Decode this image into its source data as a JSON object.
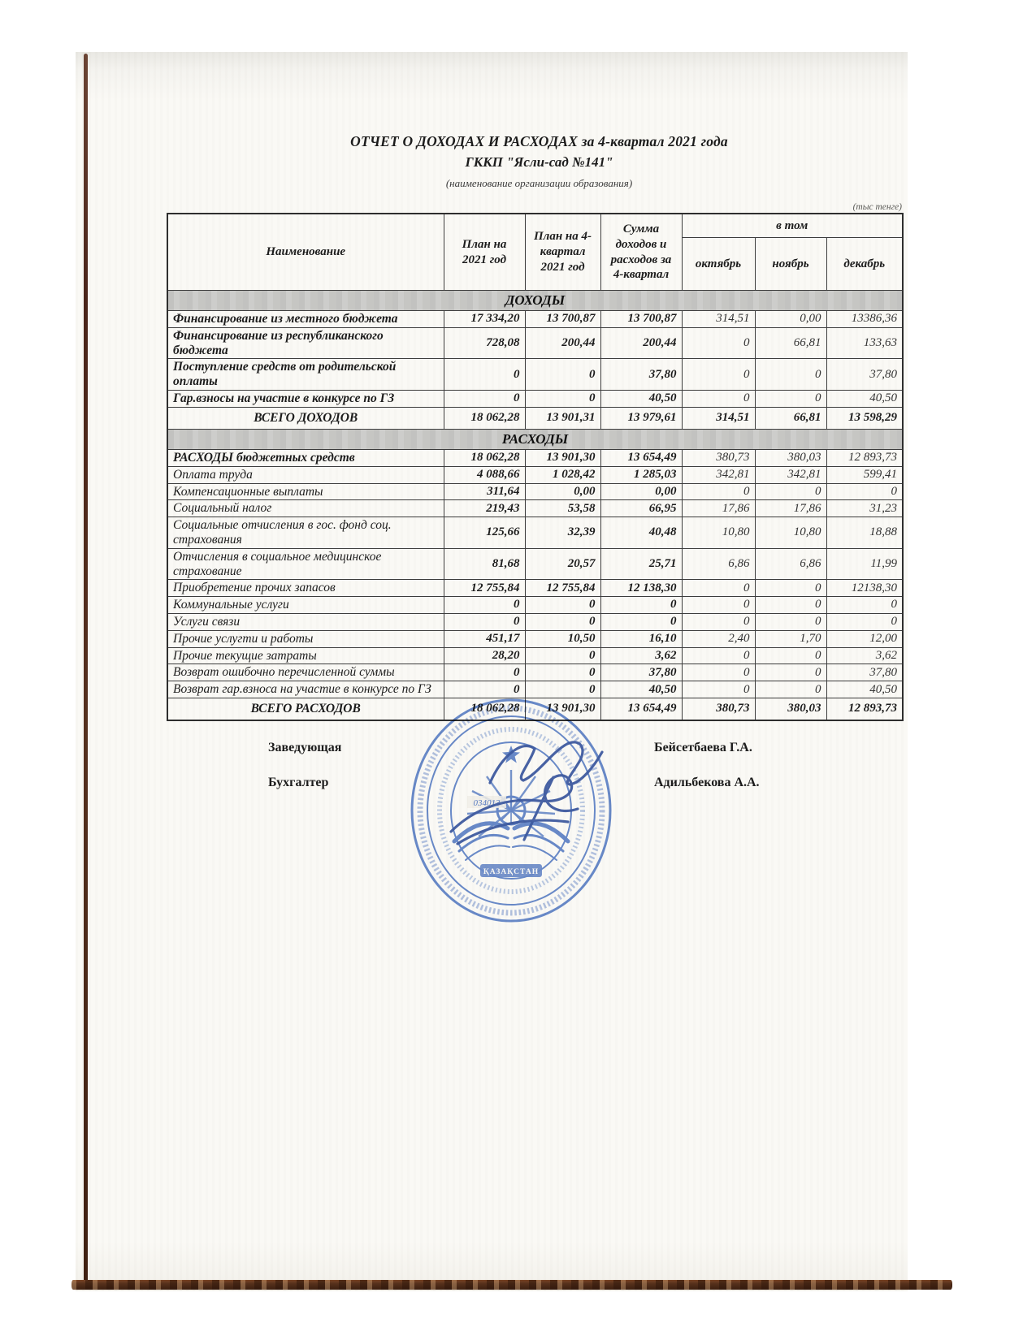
{
  "page": {
    "title_line1": "ОТЧЕТ О ДОХОДАХ И РАСХОДАХ за 4-квартал 2021 года",
    "title_line2": "ГККП \"Ясли-сад №141\"",
    "subtitle": "(наименование организации образования)",
    "units_note": "(тыс тенге)"
  },
  "table": {
    "headers": {
      "name": "Наименование",
      "plan_year": "План на 2021 год",
      "plan_q4": "План на 4-квартал 2021 год",
      "sum_q4": "Сумма доходов и расходов за 4-квартал",
      "including": "в том",
      "months": [
        "октябрь",
        "ноябрь",
        "декабрь"
      ]
    },
    "sections": [
      {
        "title": "ДОХОДЫ",
        "rows": [
          {
            "name": "Финансирование из местного бюджета",
            "bold": true,
            "values": [
              "17 334,20",
              "13 700,87",
              "13 700,87",
              "314,51",
              "0,00",
              "13386,36"
            ]
          },
          {
            "name": "Финансирование из республиканского бюджета",
            "bold": true,
            "values": [
              "728,08",
              "200,44",
              "200,44",
              "0",
              "66,81",
              "133,63"
            ]
          },
          {
            "name": "Поступление средств от родительской оплаты",
            "bold": true,
            "values": [
              "0",
              "0",
              "37,80",
              "0",
              "0",
              "37,80"
            ]
          },
          {
            "name": "Гар.взносы на участие в конкурсе по ГЗ",
            "bold": true,
            "values": [
              "0",
              "0",
              "40,50",
              "0",
              "0",
              "40,50"
            ]
          }
        ],
        "total": {
          "name": "ВСЕГО ДОХОДОВ",
          "values": [
            "18 062,28",
            "13 901,31",
            "13 979,61",
            "314,51",
            "66,81",
            "13 598,29"
          ]
        }
      },
      {
        "title": "РАСХОДЫ",
        "rows": [
          {
            "name": "РАСХОДЫ бюджетных средств",
            "bold": true,
            "values": [
              "18 062,28",
              "13 901,30",
              "13 654,49",
              "380,73",
              "380,03",
              "12 893,73"
            ]
          },
          {
            "name": "Оплата труда",
            "bold": false,
            "values": [
              "4 088,66",
              "1 028,42",
              "1 285,03",
              "342,81",
              "342,81",
              "599,41"
            ]
          },
          {
            "name": "Компенсационные выплаты",
            "bold": false,
            "values": [
              "311,64",
              "0,00",
              "0,00",
              "0",
              "0",
              "0"
            ]
          },
          {
            "name": "Социальный налог",
            "bold": false,
            "values": [
              "219,43",
              "53,58",
              "66,95",
              "17,86",
              "17,86",
              "31,23"
            ]
          },
          {
            "name": "Социальные отчисления в гос. фонд соц. страхования",
            "bold": false,
            "values": [
              "125,66",
              "32,39",
              "40,48",
              "10,80",
              "10,80",
              "18,88"
            ]
          },
          {
            "name": "Отчисления в социальное медицинское страхование",
            "bold": false,
            "values": [
              "81,68",
              "20,57",
              "25,71",
              "6,86",
              "6,86",
              "11,99"
            ]
          },
          {
            "name": "Приобретение прочих запасов",
            "bold": false,
            "values": [
              "12 755,84",
              "12 755,84",
              "12 138,30",
              "0",
              "0",
              "12138,30"
            ]
          },
          {
            "name": "Коммунальные услуги",
            "bold": false,
            "values": [
              "0",
              "0",
              "0",
              "0",
              "0",
              "0"
            ]
          },
          {
            "name": "Услуги связи",
            "bold": false,
            "values": [
              "0",
              "0",
              "0",
              "0",
              "0",
              "0"
            ]
          },
          {
            "name": "Прочие услугти и работы",
            "bold": false,
            "values": [
              "451,17",
              "10,50",
              "16,10",
              "2,40",
              "1,70",
              "12,00"
            ]
          },
          {
            "name": "Прочие текущие затраты",
            "bold": false,
            "values": [
              "28,20",
              "0",
              "3,62",
              "0",
              "0",
              "3,62"
            ]
          },
          {
            "name": "Возврат ошибочно перечисленной суммы",
            "bold": false,
            "values": [
              "0",
              "0",
              "37,80",
              "0",
              "0",
              "37,80"
            ]
          },
          {
            "name": "Возврат гар.взноса на участие в конкурсе по ГЗ",
            "bold": false,
            "values": [
              "0",
              "0",
              "40,50",
              "0",
              "0",
              "40,50"
            ]
          }
        ],
        "total": {
          "name": "ВСЕГО РАСХОДОВ",
          "values": [
            "18 062,28",
            "13 901,30",
            "13 654,49",
            "380,73",
            "380,03",
            "12 893,73"
          ]
        }
      }
    ]
  },
  "signatures": [
    {
      "role": "Заведующая",
      "name": "Бейсетбаева Г.А."
    },
    {
      "role": "Бухгалтер",
      "name": "Адильбекова А.А."
    }
  ],
  "stamp": {
    "number": "034013",
    "banner": "ҚАЗАҚСТАН",
    "colors": {
      "stamp_blue": "#5d82cc",
      "ink_blue": "#2f4fa0"
    }
  },
  "colors": {
    "section_band": "#c7c7c5",
    "paper": "#faf9f5",
    "edge_brown": "#55301b",
    "table_border": "#3c3c3c"
  }
}
